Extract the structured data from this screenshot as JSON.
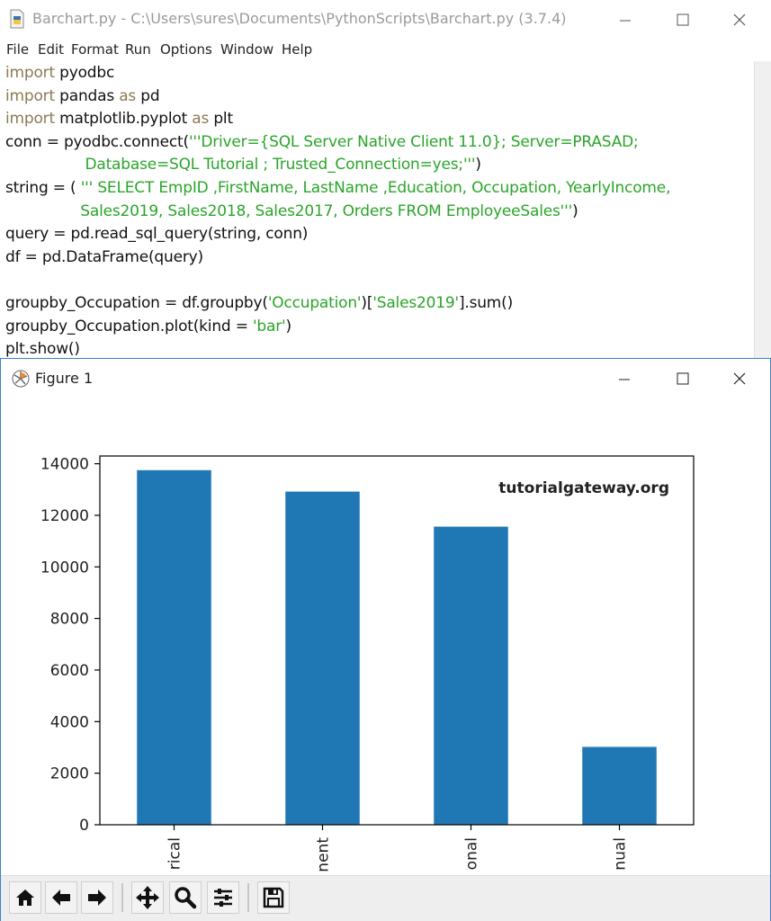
{
  "editor": {
    "title": "Barchart.py - C:\\Users\\sures\\Documents\\PythonScripts\\Barchart.py (3.7.4)",
    "menu": [
      "File",
      "Edit",
      "Format",
      "Run",
      "Options",
      "Window",
      "Help"
    ],
    "code": [
      [
        [
          "kw",
          "import"
        ],
        [
          "t",
          " pyodbc"
        ]
      ],
      [
        [
          "kw",
          "import"
        ],
        [
          "t",
          " pandas "
        ],
        [
          "kw",
          "as"
        ],
        [
          "t",
          " pd"
        ]
      ],
      [
        [
          "kw",
          "import"
        ],
        [
          "t",
          " matplotlib.pyplot "
        ],
        [
          "kw",
          "as"
        ],
        [
          "t",
          " plt"
        ]
      ],
      [
        [
          "t",
          "conn = pyodbc.connect("
        ],
        [
          "str",
          "'''Driver={SQL Server Native Client 11.0}; Server=PRASAD;"
        ]
      ],
      [
        [
          "str",
          "                 Database=SQL Tutorial ; Trusted_Connection=yes;'''"
        ],
        [
          "t",
          ")"
        ]
      ],
      [
        [
          "t",
          "string = ( "
        ],
        [
          "str",
          "''' SELECT EmpID ,FirstName, LastName ,Education, Occupation, YearlyIncome,"
        ]
      ],
      [
        [
          "str",
          "                Sales2019, Sales2018, Sales2017, Orders FROM EmployeeSales'''"
        ],
        [
          "t",
          ")"
        ]
      ],
      [
        [
          "t",
          "query = pd.read_sql_query(string, conn)"
        ]
      ],
      [
        [
          "t",
          "df = pd.DataFrame(query)"
        ]
      ],
      [
        [
          "t",
          ""
        ]
      ],
      [
        [
          "t",
          "groupby_Occupation = df.groupby("
        ],
        [
          "str",
          "'Occupation'"
        ],
        [
          "t",
          ")["
        ],
        [
          "str",
          "'Sales2019'"
        ],
        [
          "t",
          "].sum()"
        ]
      ],
      [
        [
          "t",
          "groupby_Occupation.plot(kind = "
        ],
        [
          "str",
          "'bar'"
        ],
        [
          "t",
          ")"
        ]
      ],
      [
        [
          "t",
          "plt.show()"
        ]
      ]
    ]
  },
  "figure": {
    "title": "Figure 1",
    "watermark": "tutorialgateway.org",
    "toolbar_icons": [
      "home-icon",
      "back-arrow-icon",
      "forward-arrow-icon",
      "pan-icon",
      "zoom-icon",
      "subplots-icon",
      "save-icon"
    ]
  },
  "chart_data": {
    "type": "bar",
    "categories": [
      "rical",
      "nent",
      "onal",
      "nual"
    ],
    "values": [
      13750,
      12920,
      11560,
      3020
    ],
    "ylim": [
      0,
      14300
    ],
    "yticks": [
      0,
      2000,
      4000,
      6000,
      8000,
      10000,
      12000,
      14000
    ],
    "title": "",
    "xlabel": "",
    "ylabel": "",
    "bar_color": "#1f77b4",
    "grid": false
  }
}
